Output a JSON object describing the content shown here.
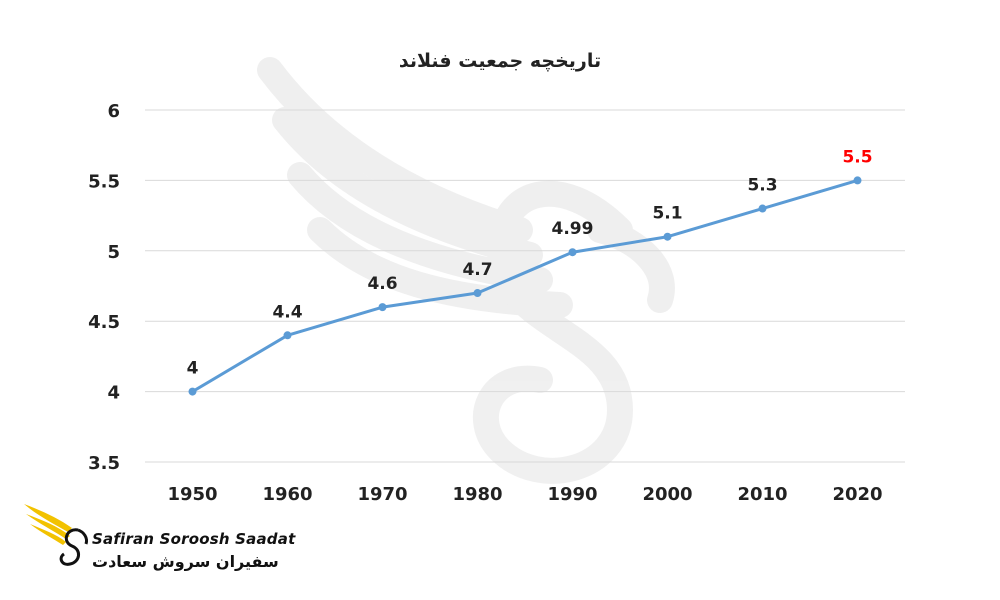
{
  "chart_data": {
    "type": "line",
    "title": "تاریخچه جمعیت فنلاند",
    "x": [
      "1950",
      "1960",
      "1970",
      "1980",
      "1990",
      "2000",
      "2010",
      "2020"
    ],
    "series": [
      {
        "values": [
          4,
          4.4,
          4.6,
          4.7,
          4.99,
          5.1,
          5.3,
          5.5
        ]
      }
    ],
    "data_labels": [
      "4",
      "4.4",
      "4.6",
      "4.7",
      "4.99",
      "5.1",
      "5.3",
      "5.5"
    ],
    "highlight_label_index": 7,
    "yticks": [
      "3.5",
      "4",
      "4.5",
      "5",
      "5.5",
      "6"
    ],
    "ylim": [
      3.5,
      6
    ],
    "grid": true,
    "colors": {
      "line": "#5b9bd5",
      "highlight": "#ff0000",
      "grid": "#d9d9d9",
      "text": "#222222"
    }
  },
  "watermark": {
    "brand_en": "Safiran Soroosh Saadat",
    "brand_fa": "سفیران سروش سعادت"
  }
}
